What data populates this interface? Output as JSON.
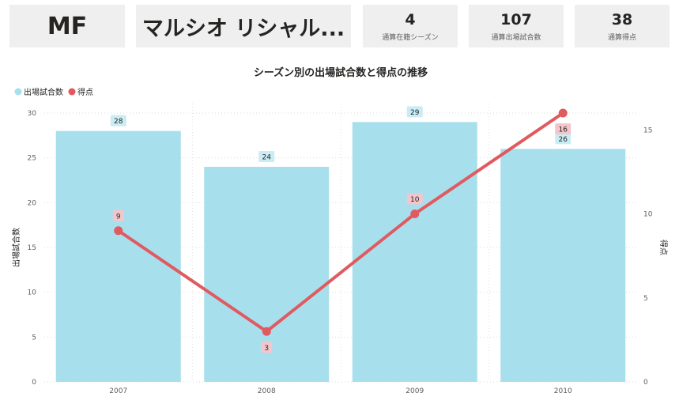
{
  "cards": {
    "position": "MF",
    "player_name": "マルシオ リシャル...",
    "seasons_value": "4",
    "seasons_label": "通算在籍シーズン",
    "matches_value": "107",
    "matches_label": "通算出場試合数",
    "goals_value": "38",
    "goals_label": "通算得点"
  },
  "colors": {
    "bar": "#a8dfec",
    "line": "#e05a60",
    "card_bg": "#efefef",
    "bar_label_bg": "#c9ecf5",
    "goal_label_bg": "#f2c6cb"
  },
  "chart_data": {
    "type": "bar",
    "title": "シーズン別の出場試合数と得点の推移",
    "categories": [
      "2007",
      "2008",
      "2009",
      "2010"
    ],
    "series": [
      {
        "name": "出場試合数",
        "type": "bar",
        "axis": "left",
        "values": [
          28,
          24,
          29,
          26
        ]
      },
      {
        "name": "得点",
        "type": "line",
        "axis": "right",
        "values": [
          9,
          3,
          10,
          16
        ]
      }
    ],
    "ylabel": "出場試合数",
    "y2label": "得点",
    "ylim": [
      0,
      30
    ],
    "y2lim": [
      0,
      16
    ],
    "yticks": [
      "0",
      "5",
      "10",
      "15",
      "20",
      "25",
      "30"
    ],
    "y2ticks": [
      "0",
      "5",
      "10",
      "15"
    ],
    "legend": "top-left",
    "grid": true
  }
}
